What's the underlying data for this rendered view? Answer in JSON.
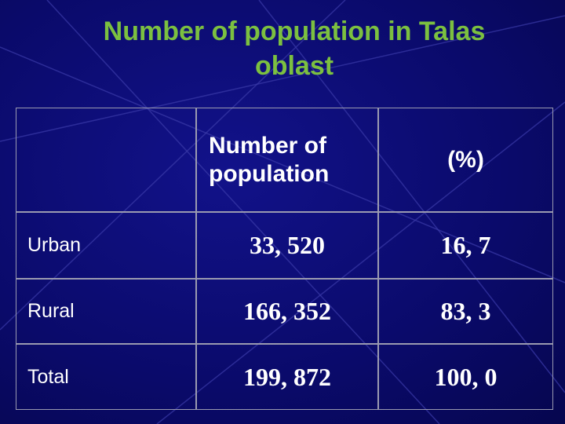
{
  "header": {
    "title": "Number of population in Talas oblast"
  },
  "table": {
    "columns": [
      "",
      "Number of population",
      "(%)"
    ],
    "rows": [
      [
        "Urban",
        "33, 520",
        "16, 7"
      ],
      [
        "Rural",
        "166, 352",
        "83, 3"
      ],
      [
        "Total",
        "199, 872",
        "100, 0"
      ]
    ]
  }
}
